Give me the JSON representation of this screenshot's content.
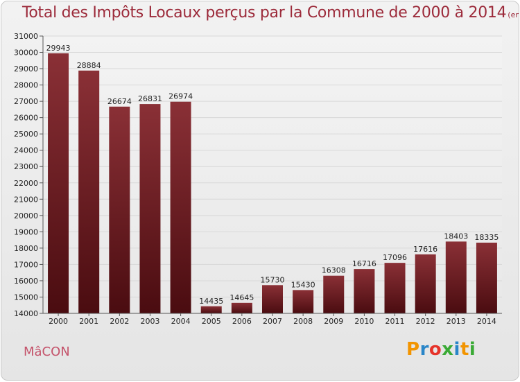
{
  "title": "Total des Impôts Locaux perçus par la Commune de 2000 à 2014",
  "title_unit": "(en milliers d'€)",
  "town": "MâCON",
  "logo": {
    "text": [
      "P",
      "r",
      "o",
      "x",
      "i",
      "t",
      "i"
    ],
    "colors": [
      "#f29400",
      "#2a86c8",
      "#e6332a",
      "#3aaa35",
      "#2a86c8",
      "#f29400",
      "#3aaa35"
    ]
  },
  "colors": {
    "bar_top": "#8a3036",
    "bar_bottom": "#4a0c10",
    "title": "#9c2a3a"
  },
  "chart_data": {
    "type": "bar",
    "categories": [
      "2000",
      "2001",
      "2002",
      "2003",
      "2004",
      "2005",
      "2006",
      "2007",
      "2008",
      "2009",
      "2010",
      "2011",
      "2012",
      "2013",
      "2014"
    ],
    "values": [
      29943,
      28884,
      26674,
      26831,
      26974,
      14435,
      14645,
      15730,
      15430,
      16308,
      16716,
      17096,
      17616,
      18403,
      18335
    ],
    "value_labels": [
      "29943",
      "28884",
      "26674",
      "26831",
      "26974",
      "14435",
      "14645",
      "15730",
      "15430",
      "16308",
      "16716",
      "17096",
      "17616",
      "18403",
      "18335"
    ],
    "ylim": [
      14000,
      31000
    ],
    "yticks": [
      14000,
      15000,
      16000,
      17000,
      18000,
      19000,
      20000,
      21000,
      22000,
      23000,
      24000,
      25000,
      26000,
      27000,
      28000,
      29000,
      30000,
      31000
    ],
    "ytick_labels": [
      "14000",
      "15000",
      "16000",
      "17000",
      "18000",
      "19000",
      "20000",
      "21000",
      "22000",
      "23000",
      "24000",
      "25000",
      "26000",
      "27000",
      "28000",
      "29000",
      "30000",
      "31000"
    ],
    "grid": true,
    "xlabel": "",
    "ylabel": ""
  }
}
